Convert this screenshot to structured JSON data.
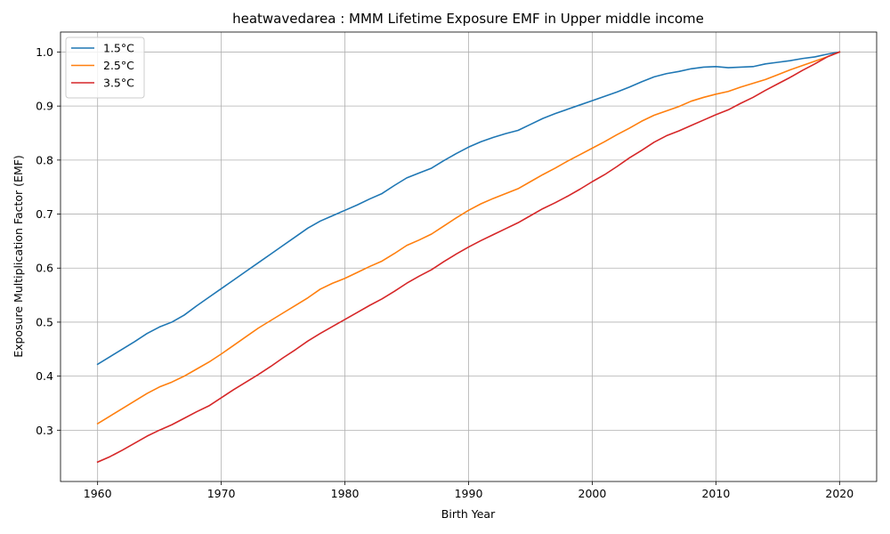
{
  "chart_data": {
    "type": "line",
    "title": "heatwavedarea : MMM Lifetime Exposure EMF in Upper middle income",
    "xlabel": "Birth Year",
    "ylabel": "Exposure Multiplication Factor (EMF)",
    "xlim": [
      1957,
      2023
    ],
    "ylim": [
      0.205,
      1.037
    ],
    "xticks": [
      1960,
      1970,
      1980,
      1990,
      2000,
      2010,
      2020
    ],
    "xtick_labels": [
      "1960",
      "1970",
      "1980",
      "1990",
      "2000",
      "2010",
      "2020"
    ],
    "yticks": [
      0.3,
      0.4,
      0.5,
      0.6,
      0.7,
      0.8,
      0.9,
      1.0
    ],
    "ytick_labels": [
      "0.3",
      "0.4",
      "0.5",
      "0.6",
      "0.7",
      "0.8",
      "0.9",
      "1.0"
    ],
    "grid": true,
    "legend_position": "top-left",
    "x": [
      1960,
      1961,
      1962,
      1963,
      1964,
      1965,
      1966,
      1967,
      1968,
      1969,
      1970,
      1971,
      1972,
      1973,
      1974,
      1975,
      1976,
      1977,
      1978,
      1979,
      1980,
      1981,
      1982,
      1983,
      1984,
      1985,
      1986,
      1987,
      1988,
      1989,
      1990,
      1991,
      1992,
      1993,
      1994,
      1995,
      1996,
      1997,
      1998,
      1999,
      2000,
      2001,
      2002,
      2003,
      2004,
      2005,
      2006,
      2007,
      2008,
      2009,
      2010,
      2011,
      2012,
      2013,
      2014,
      2015,
      2016,
      2017,
      2018,
      2019,
      2020
    ],
    "series": [
      {
        "name": "1.5°C",
        "color": "#1f77b4",
        "values": [
          0.422,
          0.436,
          0.45,
          0.464,
          0.479,
          0.491,
          0.5,
          0.513,
          0.53,
          0.546,
          0.562,
          0.578,
          0.594,
          0.61,
          0.626,
          0.642,
          0.658,
          0.674,
          0.687,
          0.697,
          0.707,
          0.717,
          0.728,
          0.738,
          0.753,
          0.767,
          0.776,
          0.785,
          0.799,
          0.812,
          0.824,
          0.834,
          0.842,
          0.849,
          0.855,
          0.866,
          0.877,
          0.886,
          0.894,
          0.902,
          0.91,
          0.918,
          0.926,
          0.935,
          0.945,
          0.954,
          0.96,
          0.964,
          0.969,
          0.972,
          0.973,
          0.971,
          0.972,
          0.973,
          0.978,
          0.981,
          0.984,
          0.988,
          0.991,
          0.996,
          1.0
        ]
      },
      {
        "name": "2.5°C",
        "color": "#ff7f0e",
        "values": [
          0.312,
          0.326,
          0.34,
          0.354,
          0.368,
          0.38,
          0.389,
          0.4,
          0.413,
          0.426,
          0.441,
          0.457,
          0.473,
          0.489,
          0.503,
          0.517,
          0.531,
          0.545,
          0.561,
          0.572,
          0.581,
          0.592,
          0.603,
          0.613,
          0.627,
          0.642,
          0.652,
          0.663,
          0.678,
          0.693,
          0.707,
          0.719,
          0.729,
          0.738,
          0.747,
          0.76,
          0.773,
          0.785,
          0.798,
          0.81,
          0.822,
          0.834,
          0.847,
          0.859,
          0.872,
          0.883,
          0.891,
          0.899,
          0.909,
          0.916,
          0.922,
          0.927,
          0.935,
          0.942,
          0.949,
          0.958,
          0.967,
          0.975,
          0.983,
          0.991,
          1.0
        ]
      },
      {
        "name": "3.5°C",
        "color": "#d62728",
        "values": [
          0.241,
          0.251,
          0.263,
          0.276,
          0.289,
          0.3,
          0.31,
          0.322,
          0.334,
          0.345,
          0.36,
          0.375,
          0.389,
          0.403,
          0.418,
          0.434,
          0.449,
          0.465,
          0.479,
          0.492,
          0.505,
          0.518,
          0.531,
          0.543,
          0.557,
          0.572,
          0.585,
          0.597,
          0.612,
          0.626,
          0.639,
          0.651,
          0.662,
          0.673,
          0.684,
          0.697,
          0.71,
          0.721,
          0.733,
          0.746,
          0.76,
          0.773,
          0.788,
          0.804,
          0.818,
          0.833,
          0.845,
          0.854,
          0.864,
          0.874,
          0.884,
          0.893,
          0.905,
          0.916,
          0.929,
          0.941,
          0.953,
          0.966,
          0.978,
          0.991,
          1.0
        ]
      }
    ]
  }
}
